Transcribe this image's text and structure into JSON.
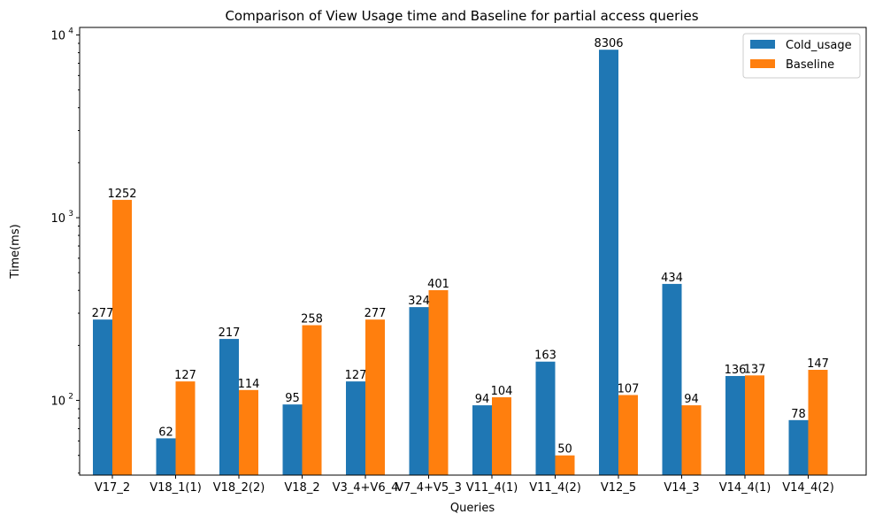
{
  "chart_data": {
    "type": "bar",
    "title": "Comparison of View Usage time and Baseline for partial access queries",
    "xlabel": "Queries",
    "ylabel": "Time(ms)",
    "yscale": "log",
    "ylim": [
      39,
      11000
    ],
    "yticks": [
      {
        "value": 100,
        "base": "10",
        "exp": "2"
      },
      {
        "value": 1000,
        "base": "10",
        "exp": "3"
      },
      {
        "value": 10000,
        "base": "10",
        "exp": "4"
      }
    ],
    "grid": false,
    "legend_position": "top-right",
    "categories": [
      "V17_2",
      "V18_1(1)",
      "V18_2(2)",
      "V18_2",
      "V3_4+V6_4",
      "V7_4+V5_3",
      "V11_4(1)",
      "V11_4(2)",
      "V12_5",
      "V14_3",
      "V14_4(1)",
      "V14_4(2)"
    ],
    "series": [
      {
        "name": "Cold_usage",
        "color": "#1f77b4",
        "values": [
          277,
          62,
          217,
          95,
          127,
          324,
          94,
          163,
          8306,
          434,
          136,
          78
        ]
      },
      {
        "name": "Baseline",
        "color": "#ff7f0e",
        "values": [
          1252,
          127,
          114,
          258,
          277,
          401,
          104,
          50,
          107,
          94,
          137,
          147
        ]
      }
    ]
  }
}
